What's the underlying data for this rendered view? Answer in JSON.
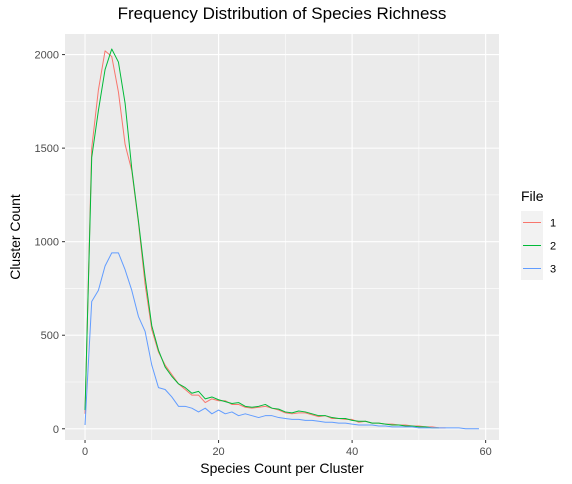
{
  "chart_data": {
    "type": "line",
    "title": "Frequency Distribution of Species Richness",
    "xlabel": "Species Count per Cluster",
    "ylabel": "Cluster Count",
    "xlim": [
      -3,
      62
    ],
    "ylim": [
      -60,
      2110
    ],
    "x_ticks": [
      0,
      20,
      40,
      60
    ],
    "y_ticks": [
      0,
      500,
      1000,
      1500,
      2000
    ],
    "x_tick_labels": [
      "0",
      "20",
      "40",
      "60"
    ],
    "y_tick_labels": [
      "0",
      "500",
      "1000",
      "1500",
      "2000"
    ],
    "grid": true,
    "legend": {
      "title": "File",
      "position": "right"
    },
    "series": [
      {
        "name": "1",
        "color": "#F8766D",
        "x": [
          0,
          1,
          2,
          3,
          4,
          5,
          6,
          7,
          8,
          9,
          10,
          11,
          12,
          13,
          14,
          15,
          16,
          17,
          18,
          19,
          20,
          21,
          22,
          23,
          24,
          25,
          26,
          27,
          28,
          29,
          30,
          31,
          32,
          33,
          34,
          35,
          36,
          37,
          38,
          39,
          40,
          41,
          42,
          43,
          44,
          45,
          46,
          47,
          48,
          49,
          50,
          51,
          52,
          53,
          54
        ],
        "y": [
          80,
          1500,
          1810,
          2020,
          1990,
          1800,
          1520,
          1380,
          1100,
          770,
          530,
          410,
          340,
          290,
          240,
          210,
          180,
          180,
          140,
          160,
          150,
          150,
          130,
          130,
          115,
          110,
          115,
          120,
          110,
          100,
          85,
          80,
          85,
          85,
          75,
          65,
          70,
          55,
          55,
          50,
          50,
          35,
          40,
          30,
          30,
          25,
          25,
          20,
          20,
          15,
          15,
          10,
          10,
          5,
          5
        ]
      },
      {
        "name": "2",
        "color": "#00BA38",
        "x": [
          0,
          1,
          2,
          3,
          4,
          5,
          6,
          7,
          8,
          9,
          10,
          11,
          12,
          13,
          14,
          15,
          16,
          17,
          18,
          19,
          20,
          21,
          22,
          23,
          24,
          25,
          26,
          27,
          28,
          29,
          30,
          31,
          32,
          33,
          34,
          35,
          36,
          37,
          38,
          39,
          40,
          41,
          42,
          43,
          44,
          45,
          46,
          47,
          48,
          49,
          50,
          51,
          52,
          53
        ],
        "y": [
          100,
          1450,
          1700,
          1920,
          2030,
          1960,
          1740,
          1390,
          1110,
          810,
          550,
          420,
          330,
          280,
          240,
          220,
          190,
          200,
          160,
          170,
          155,
          145,
          135,
          140,
          120,
          115,
          120,
          130,
          110,
          105,
          90,
          85,
          95,
          90,
          80,
          70,
          70,
          60,
          55,
          55,
          45,
          40,
          40,
          30,
          30,
          25,
          20,
          20,
          15,
          15,
          10,
          10,
          5,
          5
        ]
      },
      {
        "name": "3",
        "color": "#619CFF",
        "x": [
          0,
          1,
          2,
          3,
          4,
          5,
          6,
          7,
          8,
          9,
          10,
          11,
          12,
          13,
          14,
          15,
          16,
          17,
          18,
          19,
          20,
          21,
          22,
          23,
          24,
          25,
          26,
          27,
          28,
          29,
          30,
          31,
          32,
          33,
          34,
          35,
          36,
          37,
          38,
          39,
          40,
          41,
          42,
          43,
          44,
          45,
          46,
          47,
          48,
          49,
          50,
          51,
          52,
          53,
          54,
          55,
          56,
          57,
          58,
          59
        ],
        "y": [
          20,
          680,
          740,
          870,
          940,
          940,
          850,
          740,
          600,
          520,
          340,
          220,
          210,
          170,
          120,
          120,
          110,
          90,
          110,
          80,
          100,
          80,
          90,
          70,
          80,
          70,
          60,
          70,
          70,
          60,
          55,
          50,
          50,
          45,
          45,
          40,
          35,
          35,
          30,
          30,
          25,
          20,
          20,
          20,
          15,
          15,
          10,
          10,
          10,
          10,
          5,
          5,
          5,
          5,
          5,
          5,
          5,
          0,
          0,
          0
        ]
      }
    ]
  }
}
